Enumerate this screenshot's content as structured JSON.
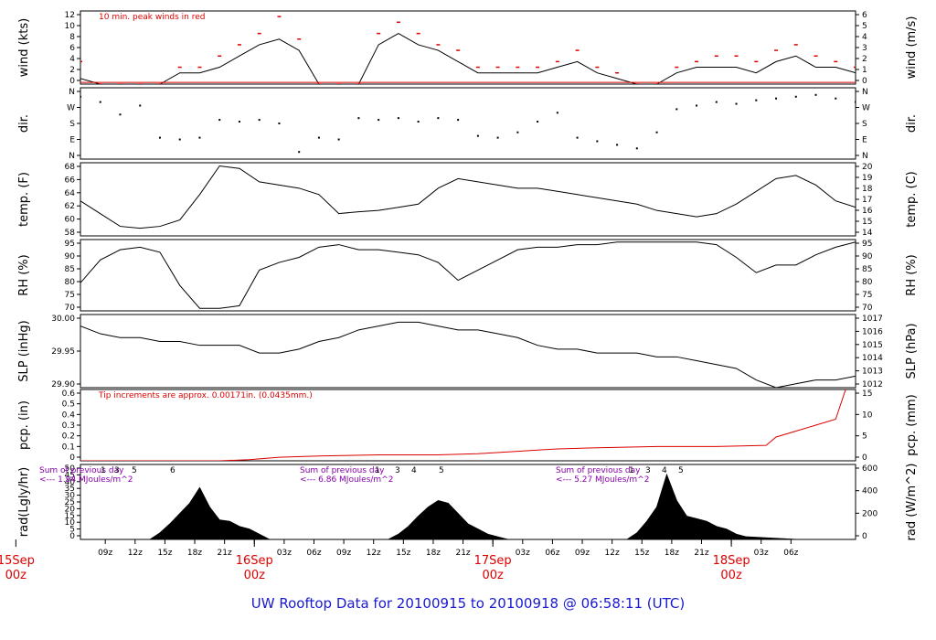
{
  "title": "UW Rooftop Data for 20100915  to  20100918 @ 06:58:11  (UTC)",
  "colors": {
    "trace": "#000000",
    "accent_red": "#dd0000",
    "rain": "#dd0000",
    "note_purple": "#8800aa",
    "title_blue": "#1a1ad0"
  },
  "time_axis": {
    "tick_labels": [
      "09z",
      "12z",
      "15z",
      "18z",
      "21z",
      "03z",
      "06z",
      "09z",
      "12z",
      "15z",
      "18z",
      "21z",
      "03z",
      "06z",
      "09z",
      "12z",
      "15z",
      "18z",
      "21z",
      "03z",
      "06z"
    ],
    "day_labels": [
      {
        "line1": "15Sep",
        "line2": "00z"
      },
      {
        "line1": "16Sep",
        "line2": "00z"
      },
      {
        "line1": "17Sep",
        "line2": "00z"
      },
      {
        "line1": "18Sep",
        "line2": "00z"
      }
    ]
  },
  "chart_data": [
    {
      "type": "line",
      "name": "wind",
      "ylabel_left": "wind (kts)",
      "ylabel_right": "wind (m/s)",
      "ylim": [
        0,
        13
      ],
      "left_ticks": [
        "0",
        "2",
        "4",
        "6",
        "8",
        "10",
        "12"
      ],
      "right_ticks": [
        "0",
        "1",
        "2",
        "3",
        "4",
        "5",
        "6"
      ],
      "annotation": "10 min. peak winds in red",
      "x_hours": [
        0,
        2,
        4,
        6,
        8,
        10,
        12,
        14,
        16,
        18,
        20,
        22,
        24,
        26,
        28,
        30,
        32,
        34,
        36,
        38,
        40,
        42,
        44,
        46,
        48,
        50,
        52,
        54,
        56,
        58,
        60,
        62,
        64,
        66,
        68,
        70,
        72,
        74,
        76,
        78
      ],
      "values": [
        1,
        0,
        0,
        0,
        0,
        2,
        2,
        3,
        5,
        7,
        8,
        6,
        0,
        0,
        0,
        7,
        9,
        7,
        6,
        4,
        2,
        2,
        2,
        2,
        3,
        4,
        2,
        1,
        0,
        0,
        2,
        3,
        3,
        3,
        2,
        4,
        5,
        3,
        3,
        2
      ],
      "peaks": [
        4,
        0,
        0,
        0,
        0,
        3,
        3,
        5,
        7,
        9,
        12,
        8,
        0,
        0,
        0,
        9,
        11,
        9,
        7,
        6,
        3,
        3,
        3,
        3,
        4,
        6,
        3,
        2,
        0,
        0,
        3,
        4,
        5,
        5,
        4,
        6,
        7,
        5,
        4,
        3
      ]
    },
    {
      "type": "scatter",
      "name": "dir",
      "ylabel_left": "dir.",
      "ylabel_right": "dir.",
      "ylim": [
        0,
        4
      ],
      "left_ticks": [
        "N",
        "E",
        "S",
        "W",
        "N"
      ],
      "right_ticks": [
        "N",
        "E",
        "S",
        "W",
        "N"
      ],
      "x_hours": [
        0,
        2,
        4,
        6,
        8,
        10,
        12,
        14,
        16,
        18,
        20,
        22,
        24,
        26,
        28,
        30,
        32,
        34,
        36,
        38,
        40,
        42,
        44,
        46,
        48,
        50,
        52,
        54,
        56,
        58,
        60,
        62,
        64,
        66,
        68,
        70,
        72,
        74,
        76,
        78
      ],
      "values": [
        3.5,
        3.2,
        2.5,
        3.0,
        1.2,
        1.1,
        1.2,
        2.2,
        2.1,
        2.2,
        2.0,
        0.4,
        1.2,
        1.1,
        2.3,
        2.2,
        2.3,
        2.1,
        2.3,
        2.2,
        1.3,
        1.2,
        1.5,
        2.1,
        2.6,
        1.2,
        1.0,
        0.8,
        0.6,
        1.5,
        2.8,
        3.0,
        3.2,
        3.1,
        3.3,
        3.4,
        3.5,
        3.6,
        3.4,
        3.2
      ]
    },
    {
      "type": "line",
      "name": "temp",
      "ylabel_left": "temp. (F)",
      "ylabel_right": "temp. (C)",
      "ylim": [
        57,
        68.5
      ],
      "left_ticks": [
        "58",
        "60",
        "62",
        "64",
        "66",
        "68"
      ],
      "right_ticks": [
        "14",
        "15",
        "16",
        "17",
        "18",
        "19",
        "20"
      ],
      "x_hours": [
        0,
        2,
        4,
        6,
        8,
        10,
        12,
        14,
        16,
        18,
        20,
        22,
        24,
        26,
        28,
        30,
        32,
        34,
        36,
        38,
        40,
        42,
        44,
        46,
        48,
        50,
        52,
        54,
        56,
        58,
        60,
        62,
        64,
        66,
        68,
        70,
        72,
        74,
        76,
        78
      ],
      "values": [
        62.5,
        60.5,
        58.5,
        58.2,
        58.5,
        59.5,
        63.5,
        68,
        67.6,
        65.5,
        65,
        64.5,
        63.5,
        60.5,
        60.8,
        61,
        61.5,
        62,
        64.5,
        66,
        65.5,
        65,
        64.5,
        64.5,
        64,
        63.5,
        63,
        62.5,
        62,
        61,
        60.5,
        60,
        60.5,
        62,
        64,
        66,
        66.5,
        65,
        62.5,
        61.5
      ]
    },
    {
      "type": "line",
      "name": "rh",
      "ylabel_left": "RH (%)",
      "ylabel_right": "RH (%)",
      "ylim": [
        70,
        98
      ],
      "left_ticks": [
        "70",
        "75",
        "80",
        "85",
        "90",
        "95"
      ],
      "right_ticks": [
        "70",
        "75",
        "80",
        "85",
        "90",
        "95"
      ],
      "x_hours": [
        0,
        2,
        4,
        6,
        8,
        10,
        12,
        14,
        16,
        18,
        20,
        22,
        24,
        26,
        28,
        30,
        32,
        34,
        36,
        38,
        40,
        42,
        44,
        46,
        48,
        50,
        52,
        54,
        56,
        58,
        60,
        62,
        64,
        66,
        68,
        70,
        72,
        74,
        76,
        78
      ],
      "values": [
        81,
        90,
        94,
        95,
        93,
        80,
        71,
        71,
        72,
        86,
        89,
        91,
        95,
        96,
        94,
        94,
        93,
        92,
        89,
        82,
        86,
        90,
        94,
        95,
        95,
        96,
        96,
        97,
        97,
        97,
        97,
        97,
        96,
        91,
        85,
        88,
        88,
        92,
        95,
        97
      ]
    },
    {
      "type": "line",
      "name": "slp",
      "ylabel_left": "SLP (inHg)",
      "ylabel_right": "SLP (hPa)",
      "ylim": [
        29.87,
        30.06
      ],
      "left_ticks": [
        "29.90",
        "29.95",
        "30.00"
      ],
      "right_ticks": [
        "1012",
        "1013",
        "1014",
        "1015",
        "1016",
        "1017"
      ],
      "x_hours": [
        0,
        2,
        4,
        6,
        8,
        10,
        12,
        14,
        16,
        18,
        20,
        22,
        24,
        26,
        28,
        30,
        32,
        34,
        36,
        38,
        40,
        42,
        44,
        46,
        48,
        50,
        52,
        54,
        56,
        58,
        60,
        62,
        64,
        66,
        68,
        70,
        72,
        74,
        76,
        78
      ],
      "values": [
        30.03,
        30.01,
        30.0,
        30.0,
        29.99,
        29.99,
        29.98,
        29.98,
        29.98,
        29.96,
        29.96,
        29.97,
        29.99,
        30.0,
        30.02,
        30.03,
        30.04,
        30.04,
        30.03,
        30.02,
        30.02,
        30.01,
        30.0,
        29.98,
        29.97,
        29.97,
        29.96,
        29.96,
        29.96,
        29.95,
        29.95,
        29.94,
        29.93,
        29.92,
        29.89,
        29.87,
        29.88,
        29.89,
        29.89,
        29.9
      ]
    },
    {
      "type": "line",
      "name": "pcp",
      "ylabel_left": "pcp. (in)",
      "ylabel_right": "pcp. (mm)",
      "ylim": [
        0,
        0.6
      ],
      "left_ticks": [
        "0",
        "0.1",
        "0.2",
        "0.3",
        "0.4",
        "0.5",
        "0.6"
      ],
      "right_ticks": [
        "0",
        "5",
        "10",
        "15"
      ],
      "annotation": "Tip increments are approx. 0.00171in. (0.0435mm.)",
      "x_hours": [
        0,
        5,
        10,
        14,
        17,
        20,
        24,
        30,
        36,
        40,
        44,
        46,
        48,
        52,
        58,
        64,
        69,
        70,
        72,
        74,
        76,
        77
      ],
      "values": [
        0,
        0,
        0,
        0,
        0.01,
        0.03,
        0.04,
        0.05,
        0.05,
        0.06,
        0.08,
        0.09,
        0.1,
        0.11,
        0.12,
        0.12,
        0.13,
        0.2,
        0.25,
        0.3,
        0.35,
        0.6
      ]
    },
    {
      "type": "area",
      "name": "rad",
      "ylabel_left": "rad(Lgly/hr)",
      "ylabel_right": "rad (W/m^2)",
      "ylim": [
        0,
        58
      ],
      "left_ticks": [
        "0",
        "5",
        "10",
        "15",
        "20",
        "25",
        "30",
        "35",
        "40",
        "45",
        "50"
      ],
      "right_ticks": [
        "0",
        "200",
        "400",
        "600"
      ],
      "annotations": [
        {
          "line1": "Sum of previous day",
          "line2": "<--- 1.94 MJoules/m^2"
        },
        {
          "line1": "Sum of previous day",
          "line2": "<--- 6.86 MJoules/m^2"
        },
        {
          "line1": "Sum of previous day",
          "line2": "<--- 5.27 MJoules/m^2"
        }
      ],
      "hour_marks": [
        "1",
        "3",
        "5",
        "6",
        "1",
        "3",
        "4",
        "5",
        "1",
        "3",
        "4",
        "5"
      ],
      "x_hours": [
        0,
        7,
        8,
        9,
        10,
        11,
        12,
        13,
        14,
        15,
        16,
        17,
        18,
        19,
        24,
        31,
        32,
        33,
        34,
        35,
        36,
        37,
        38,
        39,
        40,
        41,
        42,
        43,
        48,
        55,
        56,
        57,
        58,
        59,
        60,
        61,
        62,
        63,
        64,
        65,
        66,
        67,
        72,
        78
      ],
      "values": [
        0,
        0,
        5,
        12,
        20,
        28,
        40,
        25,
        15,
        14,
        10,
        8,
        4,
        0,
        0,
        0,
        4,
        10,
        18,
        25,
        30,
        28,
        20,
        12,
        8,
        4,
        2,
        0,
        0,
        0,
        5,
        14,
        25,
        50,
        30,
        18,
        16,
        14,
        10,
        8,
        4,
        2,
        0,
        0
      ]
    }
  ]
}
